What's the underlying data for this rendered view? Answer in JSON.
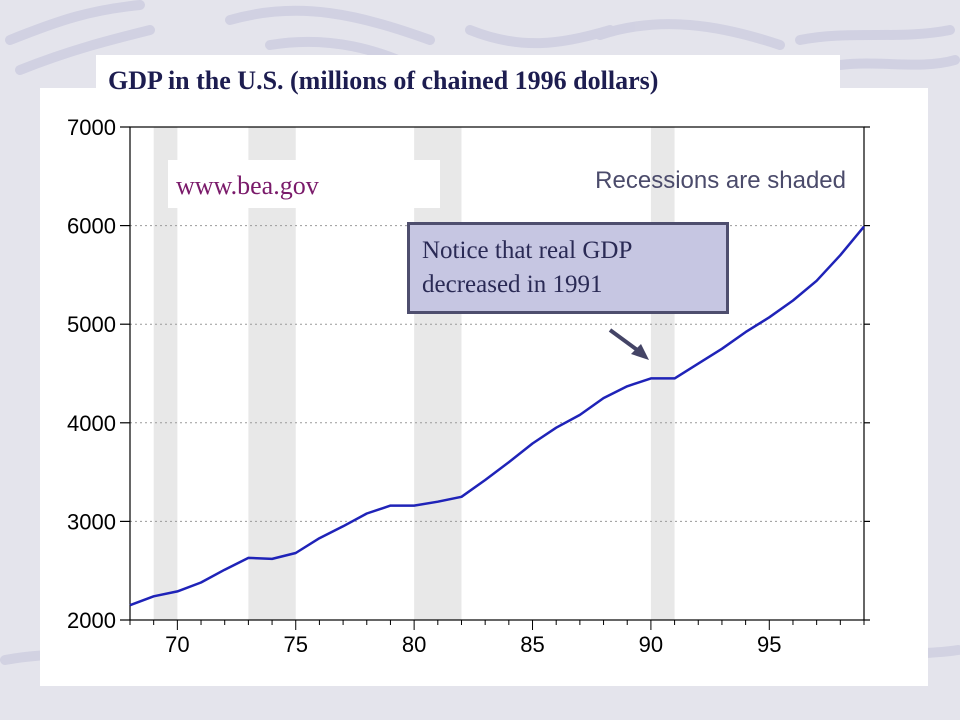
{
  "slide": {
    "title": "GDP in the U.S. (millions of chained 1996 dollars)",
    "source": "www.bea.gov",
    "note": [
      "Notice that real GDP",
      "decreased in 1991"
    ],
    "shade_label": "Recessions are shaded"
  },
  "colors": {
    "line": "#1f23b8",
    "recession_shade": "#e8e8e8",
    "title_text": "#1d1d50",
    "source_text": "#7a1a6a",
    "note_fill": "#c6c6e2",
    "note_border": "#4e4e6e"
  },
  "chart_data": {
    "type": "line",
    "title": "GDP in the U.S. (millions of chained 1996 dollars)",
    "xlabel": "",
    "ylabel": "",
    "xlim": [
      1968,
      1999
    ],
    "ylim": [
      2000,
      7000
    ],
    "xticks": [
      1970,
      1975,
      1980,
      1985,
      1990,
      1995
    ],
    "xtick_labels": [
      "70",
      "75",
      "80",
      "85",
      "90",
      "95"
    ],
    "yticks": [
      2000,
      3000,
      4000,
      5000,
      6000,
      7000
    ],
    "ytick_labels": [
      "2000",
      "3000",
      "4000",
      "5000",
      "6000",
      "7000"
    ],
    "grid": "horizontal dotted",
    "legend": "none",
    "recessions": [
      [
        1969,
        1970
      ],
      [
        1973,
        1975
      ],
      [
        1980,
        1982
      ],
      [
        1990,
        1991
      ]
    ],
    "series": [
      {
        "x": [
          1968,
          1969,
          1970,
          1971,
          1972,
          1973,
          1974,
          1975,
          1976,
          1977,
          1978,
          1979,
          1980,
          1981,
          1982,
          1983,
          1984,
          1985,
          1986,
          1987,
          1988,
          1989,
          1990,
          1991,
          1992,
          1993,
          1994,
          1995,
          1996,
          1997,
          1998,
          1999
        ],
        "y": [
          2150,
          2240,
          2290,
          2380,
          2510,
          2630,
          2620,
          2680,
          2830,
          2950,
          3080,
          3160,
          3160,
          3200,
          3250,
          3420,
          3600,
          3790,
          3950,
          4080,
          4250,
          4370,
          4450,
          4450,
          4600,
          4750,
          4920,
          5070,
          5240,
          5440,
          5700,
          5990
        ]
      }
    ],
    "annotations": [
      {
        "text": "Notice that real GDP decreased in 1991",
        "x": 1991,
        "y": 4450
      },
      {
        "text": "Recessions are shaded"
      },
      {
        "text": "www.bea.gov"
      }
    ]
  }
}
